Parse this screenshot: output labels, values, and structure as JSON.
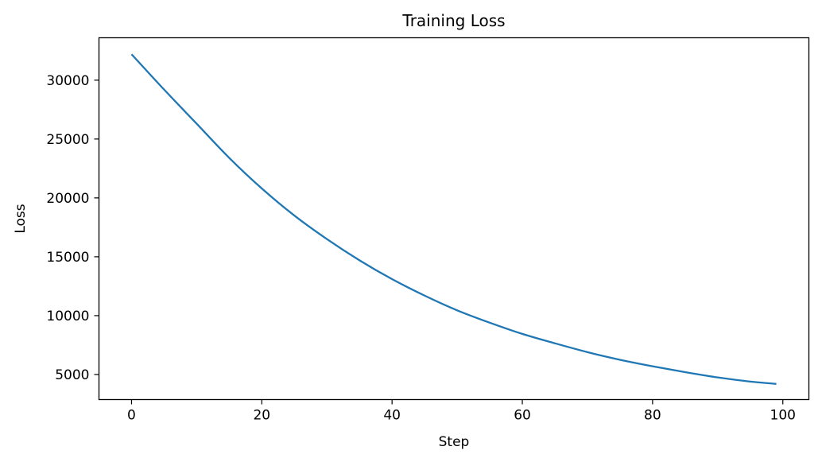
{
  "chart_data": {
    "type": "line",
    "title": "Training Loss",
    "xlabel": "Step",
    "ylabel": "Loss",
    "xlim": [
      -5,
      104
    ],
    "ylim": [
      2870,
      33600
    ],
    "xticks": [
      0,
      20,
      40,
      60,
      80,
      100
    ],
    "yticks": [
      5000,
      10000,
      15000,
      20000,
      25000,
      30000
    ],
    "grid": false,
    "series": [
      {
        "color": "#1f77b4",
        "x": [
          0,
          5,
          10,
          15,
          20,
          25,
          30,
          35,
          40,
          45,
          50,
          55,
          60,
          65,
          70,
          75,
          80,
          85,
          90,
          95,
          99
        ],
        "y": [
          32200,
          29200,
          26300,
          23400,
          20800,
          18500,
          16500,
          14700,
          13100,
          11700,
          10450,
          9400,
          8450,
          7650,
          6900,
          6250,
          5700,
          5200,
          4750,
          4400,
          4200
        ]
      }
    ]
  }
}
